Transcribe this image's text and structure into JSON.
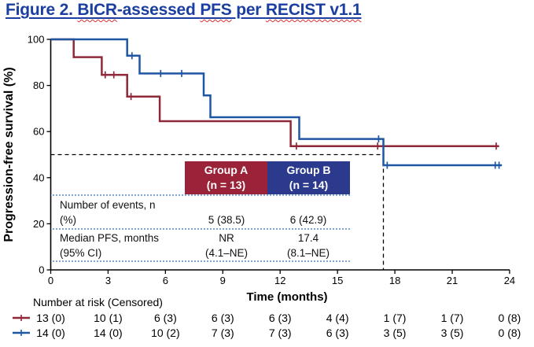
{
  "title": {
    "parts": {
      "p1": "Figure 2. ",
      "p2": "BICR",
      "p3": "-assessed ",
      "p4": "PFS",
      "p5": " per ",
      "p6": "RECIST v1.1"
    }
  },
  "colors": {
    "title_blue": "#1b3fa0",
    "curve_red": "#8f2838",
    "curve_blue": "#1e56a4",
    "box_red": "#9b2339",
    "box_blue": "#2b3a8d",
    "dotted_separator": "#7da7dc",
    "axis_black": "#000000",
    "squiggle_red": "#e03131"
  },
  "chart_data": {
    "type": "line",
    "subtype": "kaplan-meier-step",
    "xlabel": "Time (months)",
    "ylabel": "Progression-free survival (%)",
    "xlim": [
      0,
      24
    ],
    "ylim": [
      0,
      100
    ],
    "xticks": [
      0,
      3,
      6,
      9,
      12,
      15,
      18,
      21,
      24
    ],
    "yticks": [
      0,
      20,
      40,
      60,
      80,
      100
    ],
    "grid": false,
    "median_crosshair": {
      "y_pct": 50,
      "x_month": 17.4
    },
    "series": [
      {
        "name": "Group A",
        "n": 13,
        "color": "#8f2838",
        "points": [
          [
            0,
            100
          ],
          [
            1.2,
            100
          ],
          [
            1.2,
            92.3
          ],
          [
            2.67,
            92.3
          ],
          [
            2.67,
            84.6
          ],
          [
            4.0,
            84.6
          ],
          [
            4.0,
            75.2
          ],
          [
            5.7,
            75.2
          ],
          [
            5.7,
            64.5
          ],
          [
            12.55,
            64.5
          ],
          [
            12.55,
            53.7
          ],
          [
            23.45,
            53.7
          ]
        ],
        "censors": [
          [
            2.85,
            84.6
          ],
          [
            3.3,
            84.6
          ],
          [
            4.2,
            75.2
          ],
          [
            12.85,
            53.7
          ],
          [
            17.1,
            53.7
          ],
          [
            23.3,
            53.7
          ]
        ]
      },
      {
        "name": "Group B",
        "n": 14,
        "color": "#1e56a4",
        "points": [
          [
            0,
            100
          ],
          [
            4.0,
            100
          ],
          [
            4.0,
            92.9
          ],
          [
            4.65,
            92.9
          ],
          [
            4.65,
            85.2
          ],
          [
            8.0,
            85.2
          ],
          [
            8.0,
            75.7
          ],
          [
            8.35,
            75.7
          ],
          [
            8.35,
            66.2
          ],
          [
            13.0,
            66.2
          ],
          [
            13.0,
            56.8
          ],
          [
            17.4,
            56.8
          ],
          [
            17.4,
            45.4
          ],
          [
            23.6,
            45.4
          ]
        ],
        "censors": [
          [
            4.25,
            92.9
          ],
          [
            5.75,
            85.2
          ],
          [
            6.85,
            85.2
          ],
          [
            17.15,
            56.8
          ],
          [
            17.6,
            45.4
          ],
          [
            23.25,
            45.4
          ],
          [
            23.45,
            45.4
          ]
        ]
      }
    ],
    "risk_table": {
      "label": "Number at risk (Censored)",
      "time_points": [
        0,
        3,
        6,
        9,
        12,
        15,
        18,
        21,
        24
      ],
      "rows": [
        {
          "series": "Group A",
          "color": "#8f2838",
          "values": [
            "13 (0)",
            "10 (1)",
            "6 (3)",
            "6 (3)",
            "6 (3)",
            "4 (4)",
            "1 (7)",
            "1 (7)",
            "0 (8)"
          ]
        },
        {
          "series": "Group B",
          "color": "#1e56a4",
          "values": [
            "14 (0)",
            "14 (0)",
            "10 (2)",
            "7 (3)",
            "7 (3)",
            "6 (3)",
            "3 (5)",
            "3 (5)",
            "0 (8)"
          ]
        }
      ]
    }
  },
  "stats_table": {
    "header": {
      "group_a": {
        "line1": "Group A",
        "line2": "(n = 13)"
      },
      "group_b": {
        "line1": "Group B",
        "line2": "(n = 14)"
      }
    },
    "rows": {
      "events": {
        "label1": "Number of events, n",
        "label2": "(%)",
        "group_a": "5 (38.5)",
        "group_b": "6 (42.9)"
      },
      "median": {
        "label1": "Median PFS, months",
        "label2": "(95% CI)",
        "group_a1": "NR",
        "group_a2": "(4.1–NE)",
        "group_b1": "17.4",
        "group_b2": "(8.1–NE)"
      }
    }
  }
}
